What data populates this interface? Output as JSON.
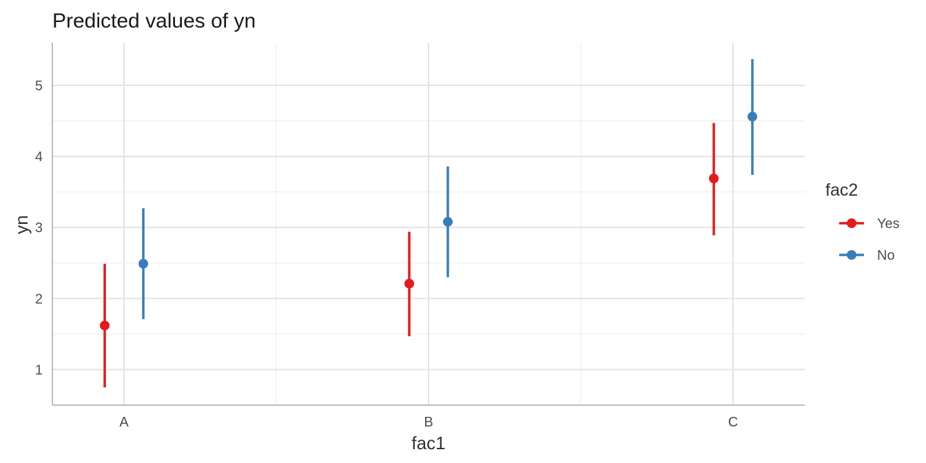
{
  "chart_data": {
    "type": "scatter",
    "title": "Predicted values of yn",
    "xlabel": "fac1",
    "ylabel": "yn",
    "categories": [
      "A",
      "B",
      "C"
    ],
    "ylim": [
      0.5,
      5.6
    ],
    "y_ticks": [
      1,
      2,
      3,
      4,
      5
    ],
    "grid": true,
    "legend": {
      "title": "fac2",
      "position": "right"
    },
    "series": [
      {
        "name": "Yes",
        "color": "#E41A1C",
        "values": [
          1.62,
          2.21,
          3.69
        ],
        "lower": [
          0.75,
          1.47,
          2.89
        ],
        "upper": [
          2.49,
          2.94,
          4.47
        ]
      },
      {
        "name": "No",
        "color": "#377EB8",
        "values": [
          2.49,
          3.08,
          4.56
        ],
        "lower": [
          1.71,
          2.3,
          3.74
        ],
        "upper": [
          3.27,
          3.86,
          5.37
        ]
      }
    ]
  }
}
